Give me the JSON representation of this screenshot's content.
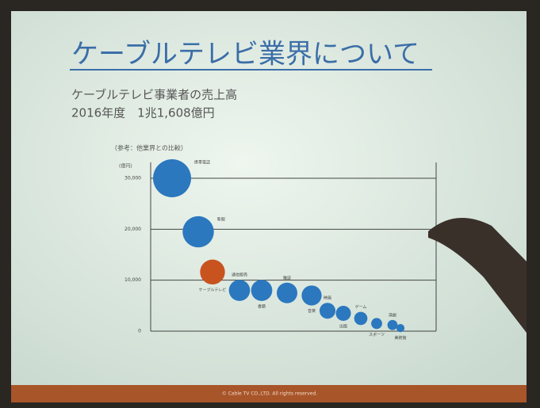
{
  "chart_data": {
    "type": "bubble",
    "title": "ケーブルテレビ業界について",
    "subtitle": [
      "ケーブルテレビ事業者の売上高",
      "2016年度　1兆1,608億円"
    ],
    "annotation": "（参考：他業界との比較）",
    "y_label": "(億円)",
    "categories": [
      "携帯電話",
      "新聞",
      "ケーブルテレビ",
      "通信販売",
      "書籍",
      "雑誌",
      "音楽",
      "映画",
      "出版",
      "ゲーム",
      "スポーツ",
      "演劇",
      "美術館"
    ],
    "values": [
      30000,
      19500,
      11608,
      8000,
      8000,
      7500,
      7000,
      4000,
      3500,
      2500,
      1500,
      1200,
      600
    ],
    "colors": [
      "#2b78bf",
      "#2b78bf",
      "#c8531f",
      "#2b78bf",
      "#2b78bf",
      "#2b78bf",
      "#2b78bf",
      "#2b78bf",
      "#2b78bf",
      "#2b78bf",
      "#2b78bf",
      "#2b78bf",
      "#2b78bf"
    ],
    "ylim": [
      0,
      30000
    ],
    "yticks": [
      0,
      {
        "value": 10000,
        "label": "10,000"
      },
      {
        "value": 20000,
        "label": "20,000"
      },
      {
        "value": 30000,
        "label": "30,000"
      }
    ],
    "grid": true,
    "footer": "© Cable TV CO.,LTD. All rights reserved."
  }
}
